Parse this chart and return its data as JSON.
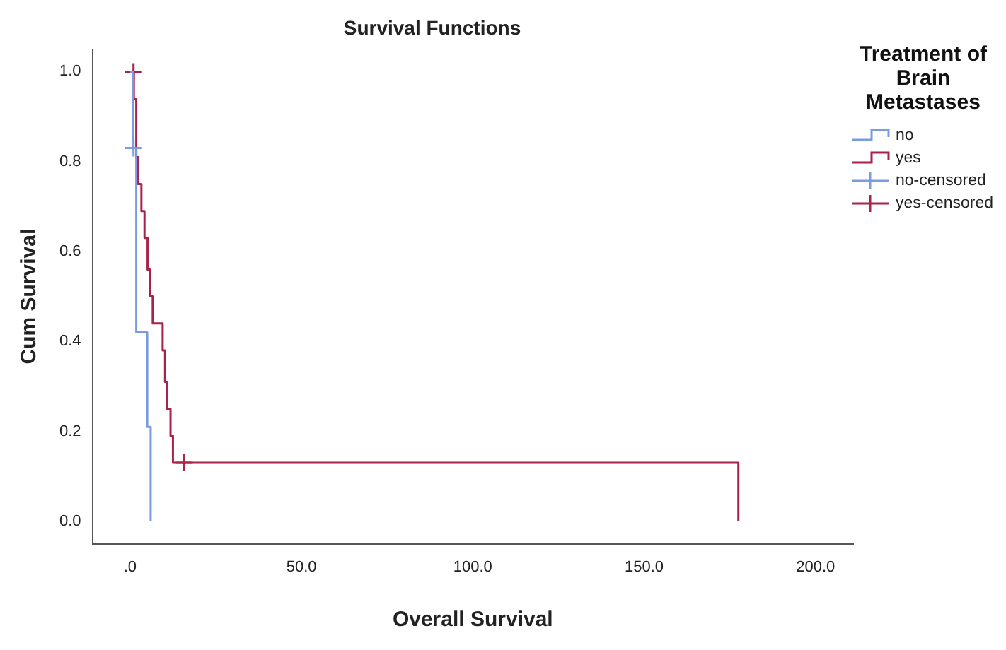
{
  "chart_data": {
    "type": "step",
    "title": "Survival Functions",
    "xlabel": "Overall Survival",
    "ylabel": "Cum Survival",
    "legend_title": "Treatment of Brain Metastases",
    "legend": "right",
    "grid": false,
    "xlim": [
      -11,
      211
    ],
    "xticks": [
      {
        "value": 0,
        "label": ".0"
      },
      {
        "value": 50,
        "label": "50.0"
      },
      {
        "value": 100,
        "label": "100.0"
      },
      {
        "value": 150,
        "label": "150.0"
      },
      {
        "value": 200,
        "label": "200.0"
      }
    ],
    "ylim": [
      -0.05,
      1.05
    ],
    "yticks": [
      {
        "value": 0,
        "label": "0.0"
      },
      {
        "value": 0.2,
        "label": "0.2"
      },
      {
        "value": 0.4,
        "label": "0.4"
      },
      {
        "value": 0.6,
        "label": "0.6"
      },
      {
        "value": 0.8,
        "label": "0.8"
      },
      {
        "value": 1,
        "label": "1.0"
      }
    ],
    "series": [
      {
        "name": "no",
        "type": "step",
        "color": "#7b9be0",
        "marker": "none",
        "x": [
          0,
          0.8,
          1.8,
          5.0,
          6.0
        ],
        "values": [
          1,
          0.83,
          0.42,
          0.21,
          0
        ]
      },
      {
        "name": "yes",
        "type": "step",
        "color": "#a8234a",
        "marker": "none",
        "x": [
          0,
          1.1,
          1.8,
          2.3,
          3.3,
          4.2,
          5.1,
          5.8,
          6.6,
          9.5,
          10.2,
          10.8,
          11.8,
          12.5,
          177.5
        ],
        "values": [
          1,
          0.94,
          0.81,
          0.75,
          0.69,
          0.63,
          0.56,
          0.5,
          0.44,
          0.38,
          0.31,
          0.25,
          0.19,
          0.13,
          0
        ]
      },
      {
        "name": "no-censored",
        "type": "scatter",
        "color": "#7b9be0",
        "marker": "cross",
        "x": [
          1.0
        ],
        "values": [
          0.83
        ]
      },
      {
        "name": "yes-censored",
        "type": "scatter",
        "color": "#a8234a",
        "marker": "cross",
        "x": [
          1.0,
          15.8
        ],
        "values": [
          1,
          0.13
        ]
      }
    ]
  }
}
